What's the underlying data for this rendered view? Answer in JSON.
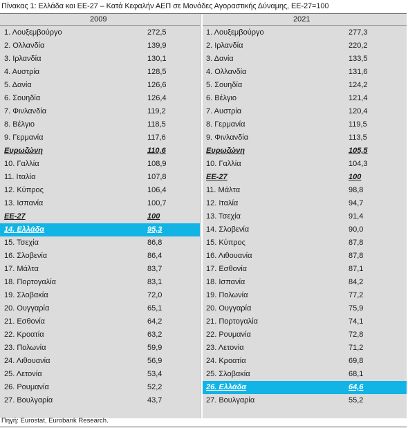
{
  "title": "Πίνακας 1: Ελλάδα και ΕΕ-27 – Κατά Κεφαλήν ΑΕΠ σε Μονάδες Αγοραστικής Δύναμης, ΕΕ-27=100",
  "source": "Πηγή: Eurostat, Eurobank Research.",
  "highlight_color": "#12b4e6",
  "panel_color": "#dcdcdc",
  "columns": [
    {
      "year": "2009",
      "rows": [
        {
          "label": "1. Λουξεμβούργο",
          "value": "272,5",
          "style": ""
        },
        {
          "label": "2. Ολλανδία",
          "value": "139,9",
          "style": ""
        },
        {
          "label": "3. Ιρλανδία",
          "value": "130,1",
          "style": ""
        },
        {
          "label": "4. Αυστρία",
          "value": "128,5",
          "style": ""
        },
        {
          "label": "5. Δανία",
          "value": "126,6",
          "style": ""
        },
        {
          "label": "6. Σουηδία",
          "value": "126,4",
          "style": ""
        },
        {
          "label": "7. Φινλανδία",
          "value": "119,2",
          "style": ""
        },
        {
          "label": "8. Βέλγιο",
          "value": "118,5",
          "style": ""
        },
        {
          "label": "9. Γερμανία",
          "value": "117,6",
          "style": ""
        },
        {
          "label": "Ευρωζώνη",
          "value": "110,6",
          "style": "bold"
        },
        {
          "label": "10. Γαλλία",
          "value": "108,9",
          "style": ""
        },
        {
          "label": "11. Ιταλία",
          "value": "107,8",
          "style": ""
        },
        {
          "label": "12. Κύπρος",
          "value": "106,4",
          "style": ""
        },
        {
          "label": "13. Ισπανία",
          "value": "100,7",
          "style": ""
        },
        {
          "label": "ΕΕ-27",
          "value": "100",
          "style": "bold"
        },
        {
          "label": "14. Ελλάδα",
          "value": "95,3",
          "style": "hl"
        },
        {
          "label": "15. Τσεχία",
          "value": "86,8",
          "style": ""
        },
        {
          "label": "16. Σλοβενία",
          "value": "86,4",
          "style": ""
        },
        {
          "label": "17. Μάλτα",
          "value": "83,7",
          "style": ""
        },
        {
          "label": "18. Πορτογαλία",
          "value": "83,1",
          "style": ""
        },
        {
          "label": "19. Σλοβακία",
          "value": "72,0",
          "style": ""
        },
        {
          "label": "20. Ουγγαρία",
          "value": "65,1",
          "style": ""
        },
        {
          "label": "21. Εσθονία",
          "value": "64,2",
          "style": ""
        },
        {
          "label": "22. Κροατία",
          "value": "63,2",
          "style": ""
        },
        {
          "label": "23. Πολωνία",
          "value": "59,9",
          "style": ""
        },
        {
          "label": "24. Λιθουανία",
          "value": "56,9",
          "style": ""
        },
        {
          "label": "25. Λετονία",
          "value": "53,4",
          "style": ""
        },
        {
          "label": "26. Ρουμανία",
          "value": "52,2",
          "style": ""
        },
        {
          "label": "27. Βουλγαρία",
          "value": "43,7",
          "style": ""
        }
      ]
    },
    {
      "year": "2021",
      "rows": [
        {
          "label": "1. Λουξεμβούργο",
          "value": "277,3",
          "style": ""
        },
        {
          "label": "2. Ιρλανδία",
          "value": "220,2",
          "style": ""
        },
        {
          "label": "3. Δανία",
          "value": "133,5",
          "style": ""
        },
        {
          "label": "4. Ολλανδία",
          "value": "131,6",
          "style": ""
        },
        {
          "label": "5. Σουηδία",
          "value": "124,2",
          "style": ""
        },
        {
          "label": "6. Βέλγιο",
          "value": "121,4",
          "style": ""
        },
        {
          "label": "7. Αυστρία",
          "value": "120,4",
          "style": ""
        },
        {
          "label": "8. Γερμανία",
          "value": "119,5",
          "style": ""
        },
        {
          "label": "9. Φινλανδία",
          "value": "113,5",
          "style": ""
        },
        {
          "label": "Ευρωζώνη",
          "value": "105,5",
          "style": "bold"
        },
        {
          "label": "10. Γαλλία",
          "value": "104,3",
          "style": ""
        },
        {
          "label": "ΕΕ-27",
          "value": "100",
          "style": "bold"
        },
        {
          "label": "11. Μάλτα",
          "value": "98,8",
          "style": ""
        },
        {
          "label": "12. Ιταλία",
          "value": "94,7",
          "style": ""
        },
        {
          "label": "13. Τσεχία",
          "value": "91,4",
          "style": ""
        },
        {
          "label": "14. Σλοβενία",
          "value": "90,0",
          "style": ""
        },
        {
          "label": "15. Κύπρος",
          "value": "87,8",
          "style": ""
        },
        {
          "label": "16. Λιθουανία",
          "value": "87,8",
          "style": ""
        },
        {
          "label": "17. Εσθονία",
          "value": "87,1",
          "style": ""
        },
        {
          "label": "18. Ισπανία",
          "value": "84,2",
          "style": ""
        },
        {
          "label": "19. Πολωνία",
          "value": "77,2",
          "style": ""
        },
        {
          "label": "20. Ουγγαρία",
          "value": "75,9",
          "style": ""
        },
        {
          "label": "21. Πορτογαλία",
          "value": "74,1",
          "style": ""
        },
        {
          "label": "22. Ρουμανία",
          "value": "72,8",
          "style": ""
        },
        {
          "label": "23. Λετονία",
          "value": "71,2",
          "style": ""
        },
        {
          "label": "24. Κροατία",
          "value": "69,8",
          "style": ""
        },
        {
          "label": "25. Σλοβακία",
          "value": "68,1",
          "style": ""
        },
        {
          "label": "26. Ελλάδα",
          "value": "64,6",
          "style": "hl"
        },
        {
          "label": "27. Βουλγαρία",
          "value": "55,2",
          "style": ""
        }
      ]
    }
  ]
}
